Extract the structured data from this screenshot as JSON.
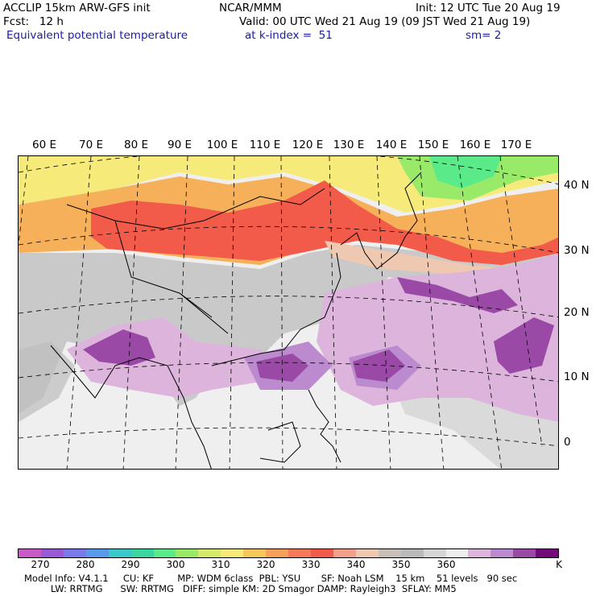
{
  "header": {
    "model": "ACCLIP 15km ARW-GFS init",
    "org": "NCAR/MMM",
    "init": "Init: 12 UTC Tue 20 Aug 19",
    "fcst": "Fcst:   12 h",
    "valid": "Valid: 00 UTC Wed 21 Aug 19 (09 JST Wed 21 Aug 19)",
    "field": "Equivalent potential temperature",
    "level": "at k-index =  51",
    "smooth": "sm= 2"
  },
  "map": {
    "lon_labels": [
      "60 E",
      "70 E",
      "80 E",
      "90 E",
      "100 E",
      "110 E",
      "120 E",
      "130 E",
      "140 E",
      "150 E",
      "160 E",
      "170 E"
    ],
    "lat_labels": [
      "40 N",
      "30 N",
      "20 N",
      "10 N",
      "0"
    ]
  },
  "colorbar": {
    "unit": "K",
    "colors": [
      "#c85ac8",
      "#9a5ad6",
      "#7a7aea",
      "#5a9aea",
      "#3ac8c8",
      "#3ad6a0",
      "#5aea8a",
      "#9aea6a",
      "#d6ea6a",
      "#f6ea7a",
      "#f6c85a",
      "#f6a05a",
      "#f67a5a",
      "#f25a4a",
      "#f2a08a",
      "#eec8b0",
      "#c8c0b8",
      "#bababa",
      "#d6d6d6",
      "#eeeeee",
      "#dcb4dc",
      "#bc8ace",
      "#9a4aa6",
      "#720a7a"
    ],
    "ticks": [
      "270",
      "280",
      "290",
      "300",
      "310",
      "320",
      "330",
      "340",
      "350",
      "360"
    ]
  },
  "footer": {
    "line1": "Model Info: V4.1.1     CU: KF        MP: WDM 6class  PBL: YSU       SF: Noah LSM    15 km    51 levels   90 sec",
    "line2": "         LW: RRTMG      SW: RRTMG   DIFF: simple KM: 2D Smagor DAMP: Rayleigh3  SFLAY: MM5"
  }
}
